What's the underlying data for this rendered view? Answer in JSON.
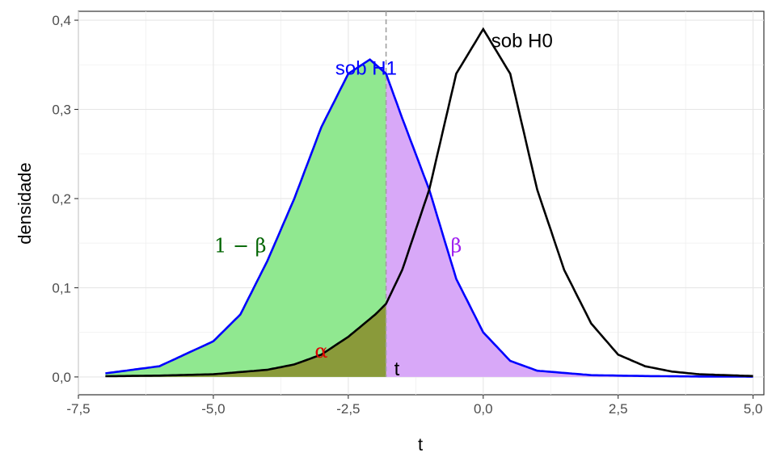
{
  "chart_data": {
    "type": "area",
    "xlabel": "t",
    "ylabel": "densidade",
    "xlim": [
      -7.5,
      5.2
    ],
    "ylim": [
      -0.02,
      0.41
    ],
    "x_ticks": [
      -7.5,
      -5.0,
      -2.5,
      0.0,
      2.5,
      5.0
    ],
    "x_tick_labels": [
      "-7,5",
      "-5,0",
      "-2,5",
      "0,0",
      "2,5",
      "5,0"
    ],
    "y_ticks": [
      0.0,
      0.1,
      0.2,
      0.3,
      0.4
    ],
    "y_tick_labels": [
      "0,0",
      "0,1",
      "0,2",
      "0,3",
      "0,4"
    ],
    "grid": true,
    "critical_value": -1.8,
    "series": [
      {
        "name": "sob H0",
        "color": "#000000",
        "x": [
          -7.0,
          -6.0,
          -5.0,
          -4.0,
          -3.5,
          -3.0,
          -2.5,
          -2.0,
          -1.8,
          -1.5,
          -1.0,
          -0.5,
          0.0,
          0.5,
          1.0,
          1.5,
          2.0,
          2.5,
          3.0,
          3.5,
          4.0,
          5.0
        ],
        "values": [
          0.0008,
          0.0015,
          0.003,
          0.008,
          0.014,
          0.025,
          0.045,
          0.07,
          0.082,
          0.12,
          0.21,
          0.34,
          0.39,
          0.34,
          0.21,
          0.12,
          0.06,
          0.025,
          0.012,
          0.006,
          0.003,
          0.001
        ]
      },
      {
        "name": "sob H1",
        "color": "#0000ff",
        "x": [
          -7.0,
          -6.0,
          -5.0,
          -4.5,
          -4.0,
          -3.5,
          -3.0,
          -2.5,
          -2.1,
          -1.8,
          -1.5,
          -1.0,
          -0.5,
          0.0,
          0.5,
          1.0,
          2.0,
          3.0,
          4.0,
          5.0
        ],
        "values": [
          0.004,
          0.012,
          0.04,
          0.07,
          0.13,
          0.2,
          0.28,
          0.34,
          0.356,
          0.34,
          0.29,
          0.21,
          0.11,
          0.05,
          0.018,
          0.007,
          0.002,
          0.001,
          0.0005,
          0.0003
        ]
      }
    ],
    "regions": [
      {
        "label": "1 − β",
        "color": "#90e890",
        "text_color": "#006400",
        "text": "1 − β"
      },
      {
        "label": "β",
        "color": "#d8a8f8",
        "text_color": "#a020f0",
        "text": "β"
      },
      {
        "label": "α",
        "color": "#8a9a3a",
        "text_color": "#dd0000",
        "text": "α"
      }
    ],
    "annotations": [
      {
        "text": "sob H0",
        "color": "#000000",
        "x": 0.9,
        "y": 0.377
      },
      {
        "text": "sob H1",
        "color": "#0000ff",
        "x": -3.3,
        "y": 0.346
      },
      {
        "text": "t",
        "color": "#000000",
        "x": -1.6,
        "y": 0.007
      }
    ]
  }
}
